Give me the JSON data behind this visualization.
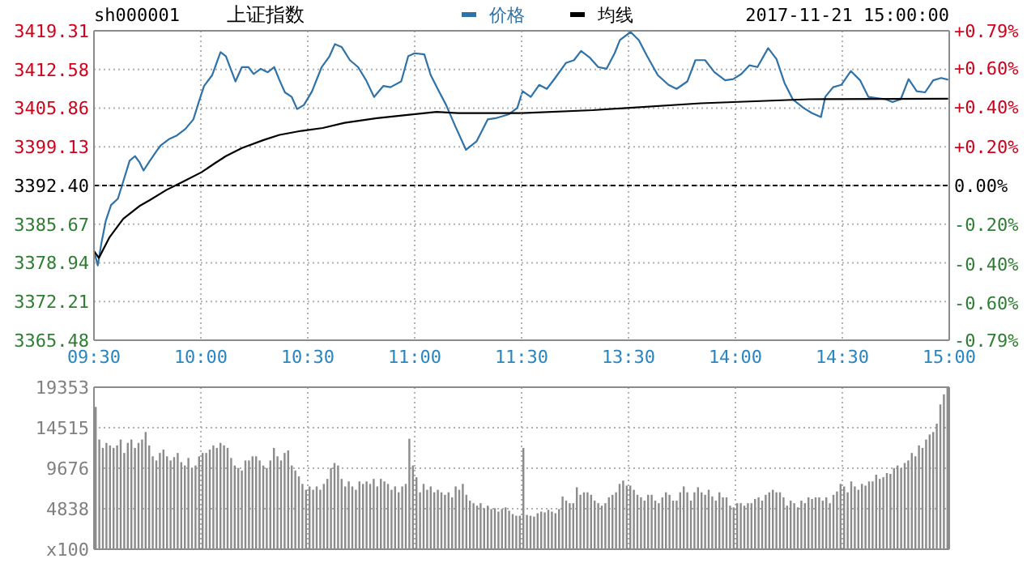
{
  "chart_data": [
    {
      "type": "line",
      "title": "上证指数",
      "subtitle": "sh000001",
      "series": [
        {
          "name": "价格",
          "color": "#2f72a8",
          "x": [
            9.5,
            9.518,
            9.535,
            9.555,
            9.58,
            9.612,
            9.642,
            9.667,
            9.692,
            9.712,
            9.732,
            9.758,
            9.793,
            9.813,
            9.853,
            9.888,
            9.927,
            9.965,
            9.99,
            10.015,
            10.053,
            10.092,
            10.117,
            10.162,
            10.192,
            10.222,
            10.247,
            10.28,
            10.313,
            10.343,
            10.368,
            10.393,
            10.425,
            10.45,
            10.482,
            10.52,
            10.565,
            10.602,
            10.627,
            10.658,
            10.697,
            10.735,
            10.773,
            10.81,
            10.853,
            10.887,
            10.937,
            10.97,
            11.0,
            11.045,
            11.075,
            11.113,
            11.147,
            11.19,
            11.24,
            11.29,
            11.342,
            11.378,
            11.442,
            11.48,
            11.5
          ],
          "values": [
            3381.0,
            3378.5,
            3382.4,
            3386.2,
            3389.0,
            3390.1,
            3393.7,
            3396.7,
            3397.5,
            3396.5,
            3395.0,
            3396.5,
            3398.4,
            3399.4,
            3400.5,
            3401.1,
            3402.2,
            3403.9,
            3406.9,
            3409.7,
            3411.6,
            3415.6,
            3414.9,
            3410.5,
            3413.0,
            3413.0,
            3411.8,
            3412.7,
            3412.1,
            3413.0,
            3410.7,
            3408.6,
            3407.8,
            3405.7,
            3406.4,
            3408.8,
            3413.0,
            3414.9,
            3417.0,
            3416.5,
            3414.2,
            3413.0,
            3410.7,
            3407.8,
            3409.7,
            3409.5,
            3410.5,
            3414.9,
            3415.4,
            3415.2,
            3411.6,
            3408.8,
            3406.4,
            3402.7,
            3398.6,
            3400.1,
            3403.9,
            3404.1,
            3404.8,
            3405.9,
            3408.3
          ]
        },
        {
          "name": "均线",
          "color": "#000000",
          "x": [
            9.5,
            9.523,
            9.573,
            9.637,
            9.712,
            9.763,
            9.838,
            9.913,
            10.003,
            10.067,
            10.117,
            10.192,
            10.293,
            10.368,
            10.47,
            10.57,
            10.672,
            10.823,
            10.975,
            11.102,
            11.202,
            11.48,
            11.5
          ],
          "values": [
            3381.0,
            3379.8,
            3383.4,
            3386.6,
            3388.8,
            3389.9,
            3391.6,
            3393.0,
            3394.7,
            3396.3,
            3397.5,
            3398.9,
            3400.3,
            3401.2,
            3401.9,
            3402.4,
            3403.3,
            3404.1,
            3404.7,
            3405.2,
            3405.0,
            3405.0,
            3405.0
          ]
        }
      ],
      "xlim": [
        9.5,
        11.5
      ],
      "xticks": [
        {
          "value": 9.5,
          "label": "09:30"
        },
        {
          "value": 10,
          "label": "10:00"
        },
        {
          "value": 10.5,
          "label": "10:30"
        },
        {
          "value": 11,
          "label": "11:00"
        },
        {
          "value": 11.5,
          "label": "11:30"
        }
      ],
      "ylim": [
        3365.48,
        3419.31
      ],
      "yticks": [
        3365.48,
        3372.21,
        3378.94,
        3385.67,
        {
          "value": 3392.4,
          "label": "3392.40"
        },
        3399.13,
        3405.86,
        3412.58,
        3419.31
      ],
      "ref_lines": [
        {
          "axis": "y",
          "value": 3392.4,
          "color": "#000000",
          "line_style": "dashed"
        }
      ],
      "grid": true,
      "legend": "top",
      "line_style": "solid",
      "marker": "none"
    },
    {
      "type": "line",
      "annotations": [
        "2017-11-21 15:00:00"
      ],
      "series": [
        {
          "name": "价格",
          "color": "#2f72a8",
          "x": [
            13.0,
            13.005,
            13.043,
            13.082,
            13.118,
            13.157,
            13.207,
            13.245,
            13.278,
            13.32,
            13.358,
            13.397,
            13.435,
            13.46,
            13.51,
            13.548,
            13.587,
            13.637,
            13.687,
            13.725,
            13.775,
            13.813,
            13.858,
            13.902,
            13.952,
            13.99,
            14.028,
            14.065,
            14.103,
            14.153,
            14.192,
            14.23,
            14.268,
            14.318,
            14.357,
            14.4,
            14.42,
            14.457,
            14.495,
            14.54,
            14.583,
            14.622,
            14.66,
            14.702,
            14.735,
            14.773,
            14.81,
            14.848,
            14.887,
            14.925,
            14.962,
            14.995
          ],
          "values": [
            3408.3,
            3408.8,
            3407.8,
            3409.9,
            3409.2,
            3411.1,
            3413.7,
            3414.2,
            3415.8,
            3414.6,
            3413.0,
            3412.7,
            3415.4,
            3417.7,
            3419.1,
            3417.7,
            3414.9,
            3411.6,
            3409.9,
            3409.2,
            3410.5,
            3414.2,
            3414.2,
            3412.1,
            3410.7,
            3410.9,
            3411.8,
            3413.3,
            3413.0,
            3416.3,
            3414.4,
            3410.2,
            3407.4,
            3405.9,
            3405.0,
            3404.3,
            3407.8,
            3409.5,
            3409.9,
            3412.3,
            3410.7,
            3407.8,
            3407.6,
            3407.4,
            3406.9,
            3407.4,
            3410.9,
            3408.8,
            3408.6,
            3410.7,
            3411.1,
            3410.8
          ]
        },
        {
          "name": "均线",
          "color": "#000000",
          "x": [
            13.0,
            13.333,
            13.838,
            14.343,
            14.995
          ],
          "values": [
            3405.0,
            3405.5,
            3406.7,
            3407.4,
            3407.5
          ]
        }
      ],
      "xlim": [
        13,
        15
      ],
      "xticks": [
        {
          "value": 13,
          "label": null
        },
        {
          "value": 13.5,
          "label": "13:30"
        },
        {
          "value": 14,
          "label": "14:00"
        },
        {
          "value": 14.5,
          "label": "14:30"
        },
        {
          "value": 15,
          "label": "15:00"
        }
      ],
      "ylim": [
        3365.48,
        3419.31
      ],
      "yticks": [
        3365.48,
        3372.21,
        3378.94,
        3385.67,
        3392.4,
        3399.13,
        3405.86,
        3412.58,
        3419.31
      ],
      "y2lim": [
        -0.79,
        0.79
      ],
      "y2ticks": [
        {
          "value": -0.79,
          "label": "-0.79%"
        },
        {
          "value": -0.6,
          "label": "-0.60%"
        },
        {
          "value": -0.4,
          "label": "-0.40%"
        },
        {
          "value": -0.2,
          "label": "-0.20%"
        },
        {
          "value": 0,
          "label": "0.00%"
        },
        {
          "value": 0.2,
          "label": "+0.20%"
        },
        {
          "value": 0.4,
          "label": "+0.40%"
        },
        {
          "value": 0.6,
          "label": "+0.60%"
        },
        {
          "value": 0.79,
          "label": "+0.79%"
        }
      ],
      "ref_lines": [
        {
          "axis": "y",
          "value": 3392.4,
          "color": "#000000",
          "line_style": "dashed"
        }
      ],
      "grid": true,
      "tick_labels": "x",
      "line_style": "solid",
      "marker": "none"
    },
    {
      "type": "bar",
      "color": "#8c8c8c",
      "categories": [
        null,
        null,
        null,
        null,
        null,
        null,
        null,
        null,
        null,
        null,
        null,
        null,
        null,
        null,
        null,
        null,
        null,
        null,
        null,
        null,
        null,
        null,
        null,
        null,
        null,
        null,
        null,
        null,
        null,
        null,
        null,
        null,
        null,
        null,
        null,
        null,
        null,
        null,
        null,
        null,
        null,
        null,
        null,
        null,
        null,
        null,
        null,
        null,
        null,
        null,
        null,
        null,
        null,
        null,
        null,
        null,
        null,
        null,
        null,
        null,
        null,
        null,
        null,
        null,
        null,
        null,
        null,
        null,
        null,
        null,
        null,
        null,
        null,
        null,
        null,
        null,
        null,
        null,
        null,
        null,
        null,
        null,
        null,
        null,
        null,
        null,
        null,
        null,
        null,
        null,
        null,
        null,
        null,
        null,
        null,
        null,
        null,
        null,
        null,
        null,
        null,
        null,
        null,
        null,
        null,
        null,
        null,
        null,
        null,
        null,
        null,
        null,
        null,
        null,
        null,
        null,
        null,
        null,
        null,
        null,
        null,
        null,
        null,
        null,
        null,
        null,
        null,
        null,
        null,
        null,
        null,
        null,
        null,
        null,
        null,
        null,
        null,
        null,
        null,
        null,
        null,
        null,
        null,
        null,
        null,
        null,
        null,
        null,
        null,
        null,
        null,
        null,
        null,
        null,
        null,
        null,
        null,
        null,
        null,
        null,
        null,
        null,
        null,
        null,
        null,
        null,
        null,
        null,
        null,
        null,
        null,
        null,
        null,
        null,
        null,
        null,
        null,
        null,
        null,
        null,
        null,
        null,
        null,
        null,
        null,
        null,
        null,
        null,
        null,
        null,
        null,
        null,
        null,
        null,
        null,
        null,
        null,
        null,
        null,
        null,
        null,
        null,
        null,
        null,
        null,
        null,
        null,
        null,
        null,
        null,
        null,
        null,
        null,
        null,
        null,
        null,
        null,
        null,
        null,
        null,
        null,
        null,
        null,
        null,
        null,
        null,
        null,
        null,
        null,
        null,
        null,
        null,
        null,
        null,
        null,
        null,
        null,
        null,
        null,
        null
      ],
      "values": [
        17000,
        13100,
        12100,
        12700,
        12400,
        12100,
        12400,
        13100,
        11500,
        12700,
        13100,
        12100,
        12700,
        13100,
        14000,
        12400,
        11100,
        10600,
        11500,
        11900,
        11100,
        10600,
        11000,
        11500,
        10400,
        10000,
        10900,
        9700,
        10000,
        11100,
        11500,
        11500,
        11900,
        12400,
        12100,
        12700,
        12400,
        12100,
        10900,
        10000,
        9700,
        9400,
        10600,
        10600,
        11100,
        11100,
        10600,
        10000,
        9700,
        10600,
        12100,
        11100,
        10600,
        11500,
        11800,
        10000,
        9400,
        8700,
        7800,
        7100,
        7500,
        7100,
        7500,
        7100,
        7800,
        8400,
        9700,
        10300,
        10000,
        8400,
        7500,
        8100,
        7500,
        7100,
        8100,
        7800,
        8100,
        7800,
        8400,
        7500,
        8400,
        8100,
        7800,
        7100,
        7500,
        6800,
        7500,
        7800,
        13200,
        10000,
        8600,
        6800,
        7800,
        7100,
        7500,
        6800,
        7100,
        6800,
        6500,
        6800,
        6200,
        7500,
        7100,
        7800,
        6500,
        5800,
        5500,
        5200,
        5500,
        4900,
        5200,
        4800,
        4900,
        4500,
        4800,
        5000,
        4600,
        4200,
        4000,
        4000,
        12100,
        4100,
        4000,
        3900,
        4300,
        4500,
        4400,
        4700,
        4500,
        4300,
        4800,
        6300,
        5800,
        5500,
        5500,
        7400,
        6500,
        6800,
        6800,
        6500,
        5800,
        5500,
        5200,
        5500,
        6200,
        6500,
        6800,
        7800,
        8200,
        7600,
        7600,
        7100,
        6500,
        6200,
        5800,
        6500,
        6500,
        5800,
        5500,
        6200,
        6800,
        6500,
        5800,
        5800,
        6800,
        7500,
        6800,
        5800,
        6800,
        7400,
        6800,
        6500,
        7100,
        6300,
        5800,
        6800,
        6200,
        6200,
        5200,
        5000,
        5500,
        5500,
        5200,
        5500,
        5500,
        6000,
        6200,
        5800,
        6500,
        6800,
        7100,
        6800,
        6800,
        6200,
        5200,
        5800,
        5500,
        5000,
        5800,
        5500,
        6200,
        6000,
        6200,
        6200,
        5800,
        6200,
        5500,
        6500,
        6900,
        7800,
        7500,
        6800,
        8100,
        7500,
        7100,
        7800,
        7600,
        8100,
        8100,
        8900,
        8400,
        8600,
        9100,
        9000,
        9700,
        10000,
        9700,
        10300,
        10600,
        11500,
        11100,
        12400,
        12100,
        13100,
        13700,
        14000,
        15000,
        17300,
        18500,
        19300
      ],
      "ylim": [
        0,
        19353
      ],
      "yticks": [
        {
          "value": 0,
          "label": "x100"
        },
        4838,
        9676,
        14515,
        19353
      ],
      "grid": true,
      "tick_labels": "y"
    }
  ]
}
